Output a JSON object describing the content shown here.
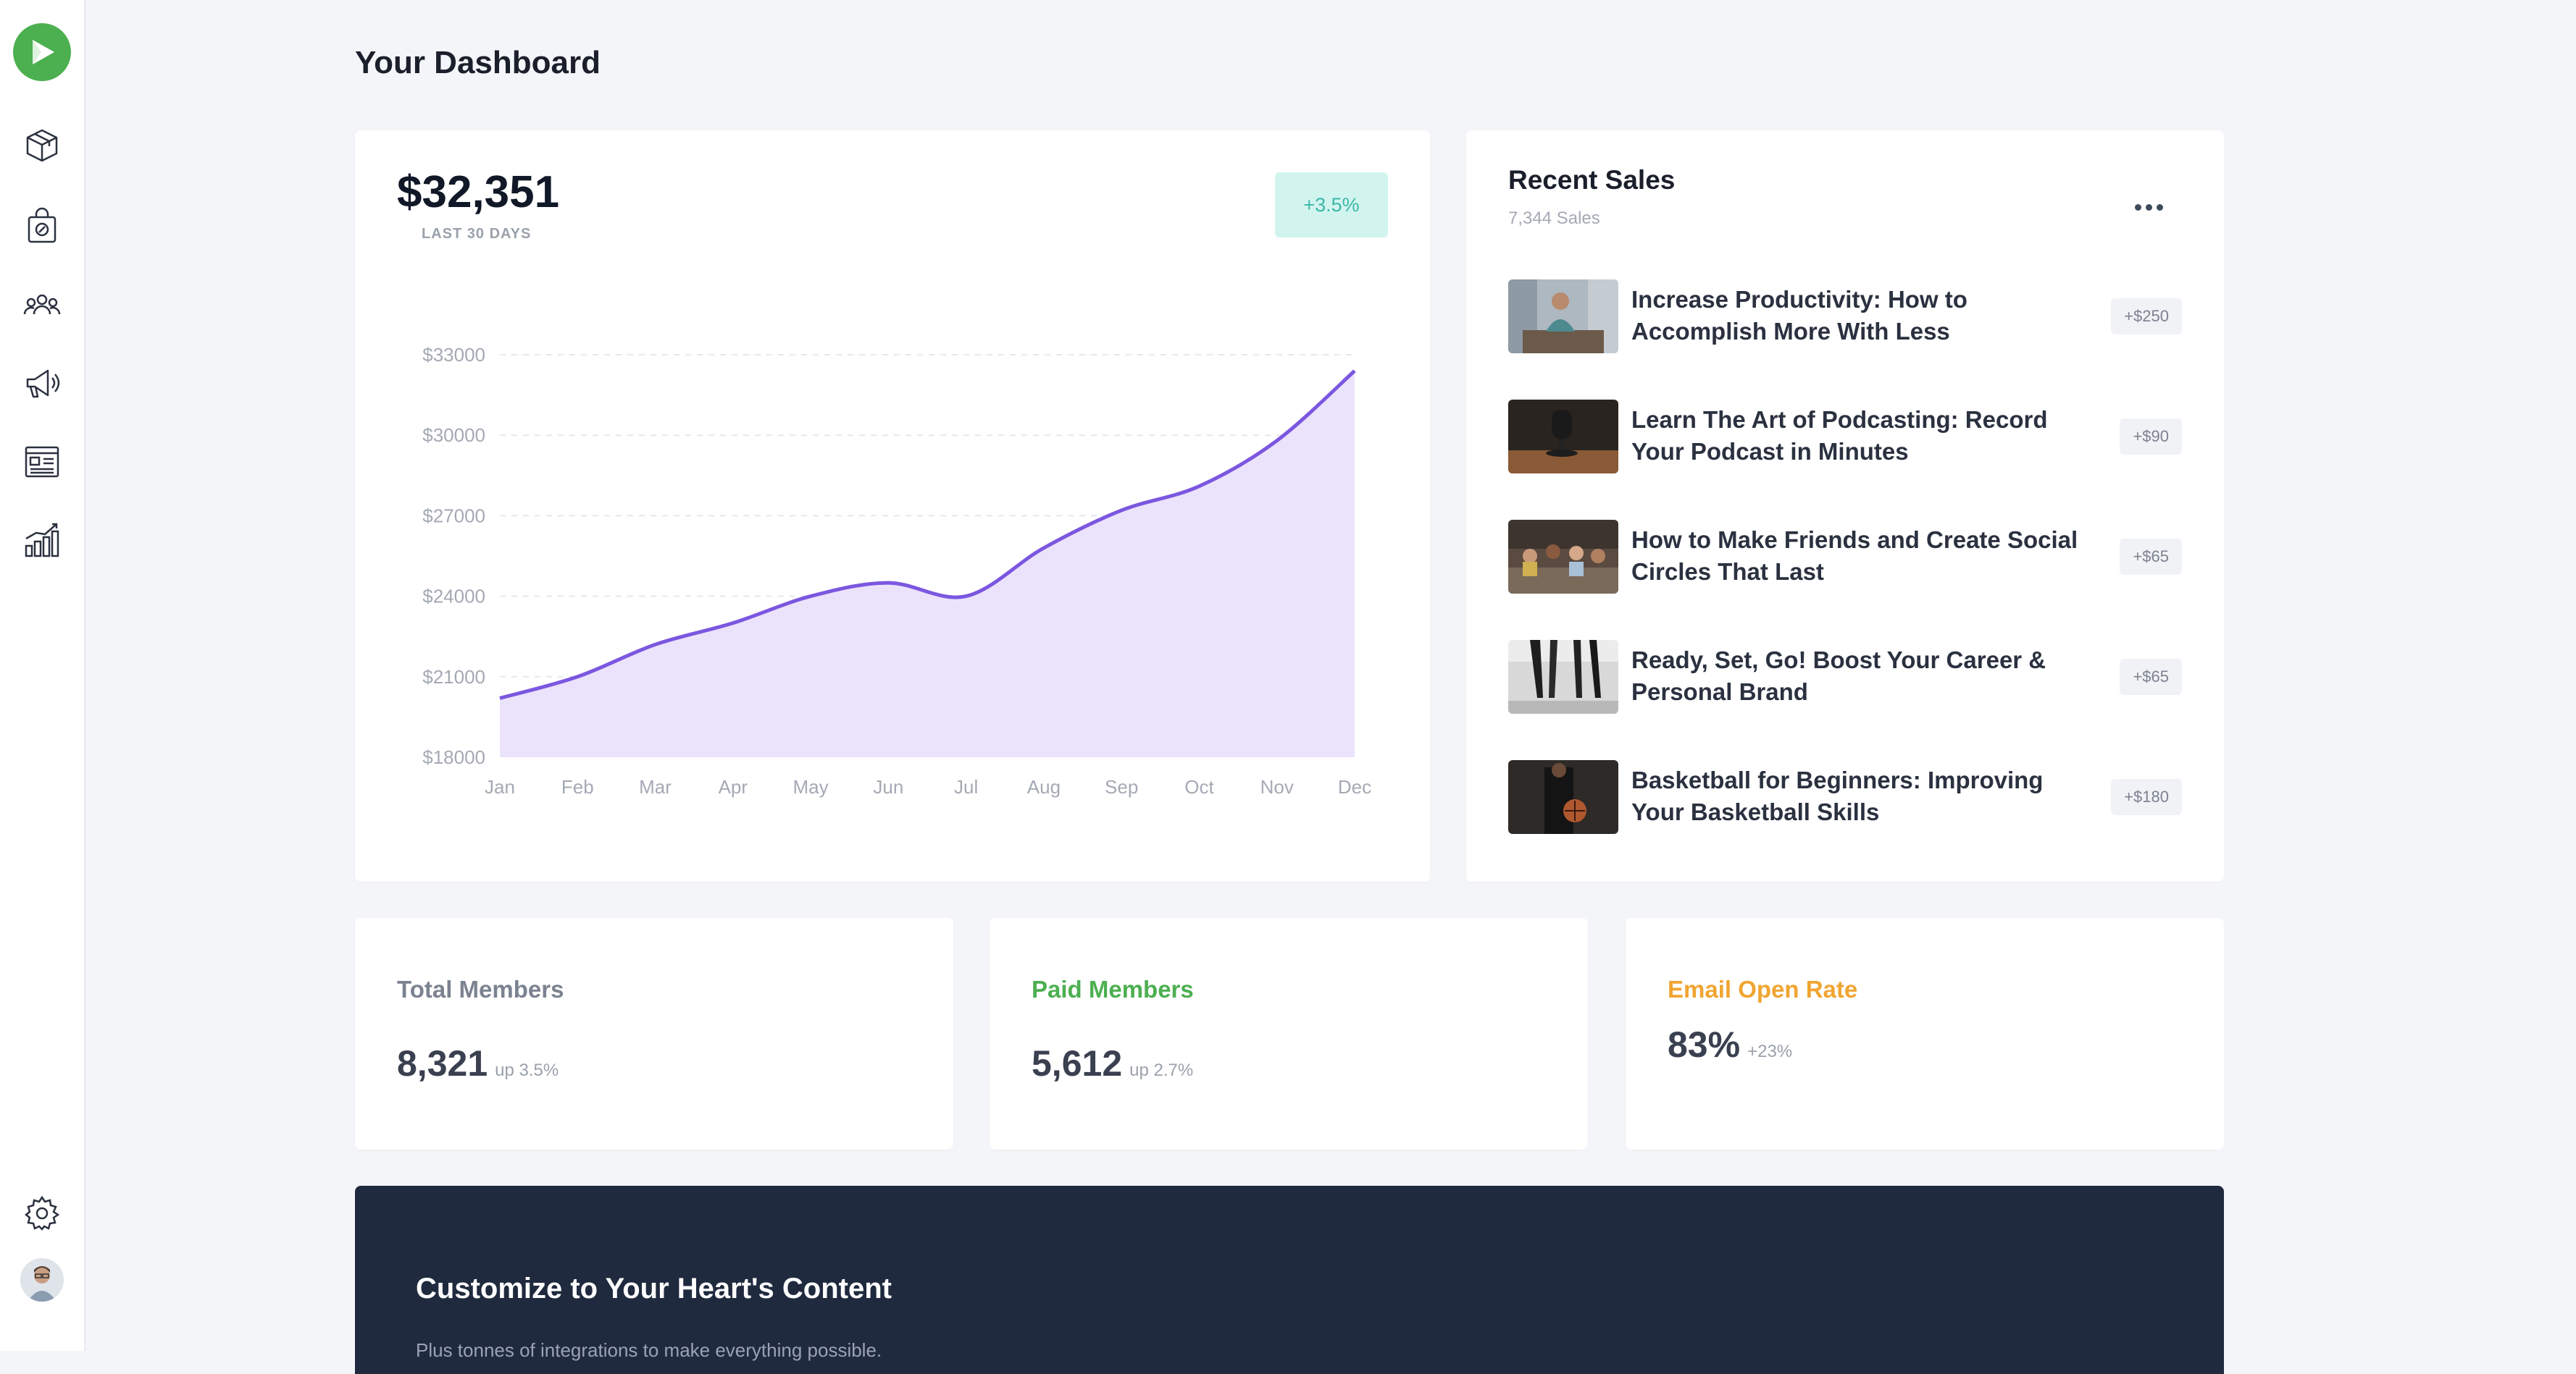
{
  "page": {
    "title": "Your Dashboard"
  },
  "sidebar": {
    "logo": "play-logo-icon",
    "items": [
      {
        "icon": "box-icon"
      },
      {
        "icon": "shopping-bag-discount-icon"
      },
      {
        "icon": "users-icon"
      },
      {
        "icon": "megaphone-icon"
      },
      {
        "icon": "newsletter-layout-icon"
      },
      {
        "icon": "analytics-bars-icon"
      }
    ],
    "settings_icon": "gear-icon",
    "avatar": "user-avatar"
  },
  "revenue": {
    "value": "$32,351",
    "period": "LAST 30 DAYS",
    "change": "+3.5%"
  },
  "chart_data": {
    "type": "area",
    "categories": [
      "Jan",
      "Feb",
      "Mar",
      "Apr",
      "May",
      "Jun",
      "Jul",
      "Aug",
      "Sep",
      "Oct",
      "Nov",
      "Dec"
    ],
    "y_ticks": [
      "$33000",
      "$30000",
      "$27000",
      "$24000",
      "$21000",
      "$18000"
    ],
    "ylim": [
      18000,
      33000
    ],
    "series": [
      {
        "values": [
          20200,
          21000,
          22200,
          23000,
          24000,
          24500,
          24000,
          25800,
          27200,
          28100,
          29800,
          32400
        ]
      }
    ],
    "grid": "horizontal dashed",
    "line_color": "#7b57e0",
    "fill_color": "#ebe3fb"
  },
  "recent_sales": {
    "title": "Recent Sales",
    "count": "7,344 Sales",
    "items": [
      {
        "title": "Increase Productivity: How to Accomplish More With Less",
        "price": "+$250"
      },
      {
        "title": "Learn The Art of Podcasting: Record Your Podcast in Minutes",
        "price": "+$90"
      },
      {
        "title": "How to Make Friends and Create Social Circles That Last",
        "price": "+$65"
      },
      {
        "title": "Ready, Set, Go! Boost Your Career & Personal Brand",
        "price": "+$65"
      },
      {
        "title": "Basketball for Beginners: Improving Your Basketball Skills",
        "price": "+$180"
      }
    ]
  },
  "stats": [
    {
      "label": "Total Members",
      "value": "8,321",
      "change": "up 3.5%",
      "color": "#7b8290"
    },
    {
      "label": "Paid Members",
      "value": "5,612",
      "change": "up 2.7%",
      "color": "#4caf50"
    },
    {
      "label": "Email Open Rate",
      "value": "83%",
      "change": "+23%",
      "color": "#f0a531"
    }
  ],
  "banner": {
    "title": "Customize to Your Heart's Content",
    "text": "Plus tonnes of integrations to make everything possible."
  }
}
